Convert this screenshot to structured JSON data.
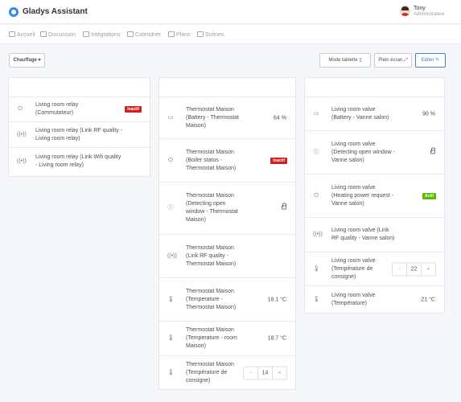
{
  "header": {
    "title": "Gladys Assistant",
    "user_name": "Tony",
    "user_role": "Administrateur"
  },
  "nav": [
    {
      "label": "Accueil",
      "icon": "home-icon"
    },
    {
      "label": "Discussion",
      "icon": "chat-icon"
    },
    {
      "label": "Intégrations",
      "icon": "grid-icon"
    },
    {
      "label": "Calendrier",
      "icon": "calendar-icon"
    },
    {
      "label": "Plans",
      "icon": "map-icon"
    },
    {
      "label": "Scènes",
      "icon": "play-icon"
    }
  ],
  "toolbar": {
    "room_select": "Chauffage",
    "tablet_mode": "Mode tablette",
    "fullscreen": "Plein écran",
    "edit": "Editer"
  },
  "col1": [
    {
      "label": "Living room relay (Commutateur)",
      "icon": "power-icon",
      "badge": "Inactif"
    },
    {
      "label": "Living room relay (Link RF quality - Living room relay)",
      "icon": "signal-icon"
    },
    {
      "label": "Living room relay (Link Wifi quality - Living room relay)",
      "icon": "signal-icon"
    }
  ],
  "col2": [
    {
      "label": "Thermostat Maison (Battery - Thermostat Maison)",
      "icon": "battery-icon",
      "value": "64 %"
    },
    {
      "label": "Thermostat Maison (Boiler status - Thermostat Maison)",
      "icon": "power-icon",
      "badge": "Inactif"
    },
    {
      "label": "Thermostat Maison (Detecting open window - Thermostat Maison)",
      "icon": "info-icon",
      "lock": true
    },
    {
      "label": "Thermostat Maison (Link RF quality - Thermostat Maison)",
      "icon": "signal-icon"
    },
    {
      "label": "Thermostat Maison (Temperature - Thermostat Maison)",
      "icon": "thermometer-icon",
      "value": "18.1 °C"
    },
    {
      "label": "Thermostat Maison (Temperature - room Maison)",
      "icon": "thermometer-icon",
      "value": "18.7 °C"
    },
    {
      "label": "Thermostat Maison (Température de consigne)",
      "icon": "thermometer-icon",
      "stepper": "14"
    }
  ],
  "col3": [
    {
      "label": "Living room valve (Battery - Vanne salon)",
      "icon": "battery-icon",
      "value": "90 %"
    },
    {
      "label": "Living room valve (Detecting open window - Vanne salon)",
      "icon": "info-icon",
      "lock": true
    },
    {
      "label": "Living room valve (Heating power request - Vanne salon)",
      "icon": "power-icon",
      "badge": "Actif"
    },
    {
      "label": "Living room valve (Link RF quality - Vanne salon)",
      "icon": "signal-icon"
    },
    {
      "label": "Living room valve (Température de consigne)",
      "icon": "thermometer-icon",
      "stepper": "22"
    },
    {
      "label": "Living room valve (Température)",
      "icon": "thermometer-icon",
      "value": "21 °C"
    }
  ],
  "stepper_labels": {
    "minus": "-",
    "plus": "+"
  }
}
